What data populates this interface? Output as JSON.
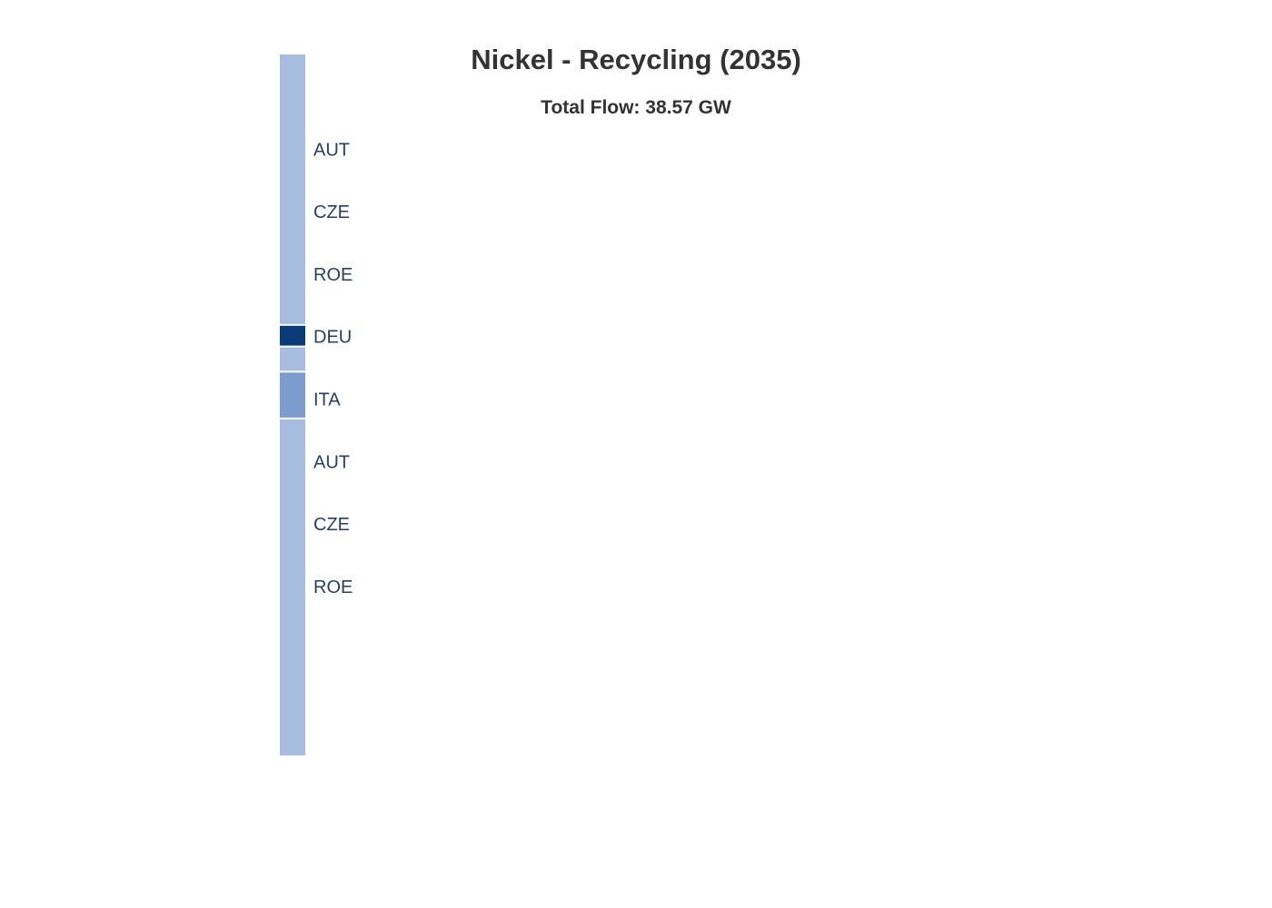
{
  "title": "Nickel - Recycling (2035)",
  "subtitle": "Total Flow: 38.57 GW",
  "chart_data": {
    "type": "sankey",
    "total_flow": "38.57 GW",
    "nodes": [
      {
        "label": "AUT",
        "share": 0.3885,
        "color": "#a6bddf"
      },
      {
        "label": "CZE",
        "share": 0,
        "color": "#a6bddf"
      },
      {
        "label": "ROE",
        "share": 0,
        "color": "#a6bddf"
      },
      {
        "label": "DEU",
        "share": 0.0285,
        "color": "#0b3c78"
      },
      {
        "label": "",
        "share": 0.0337,
        "color": "#a6bddf"
      },
      {
        "label": "ITA",
        "share": 0.0648,
        "color": "#7b9ccc"
      },
      {
        "label": "AUT",
        "share": 0.4845,
        "color": "#a6bddf"
      },
      {
        "label": "CZE",
        "share": 0,
        "color": "#a6bddf"
      },
      {
        "label": "ROE",
        "share": 0,
        "color": "#a6bddf"
      }
    ],
    "label_rows": [
      "AUT",
      "CZE",
      "ROE",
      "DEU",
      "ITA",
      "AUT",
      "CZE",
      "ROE"
    ]
  }
}
